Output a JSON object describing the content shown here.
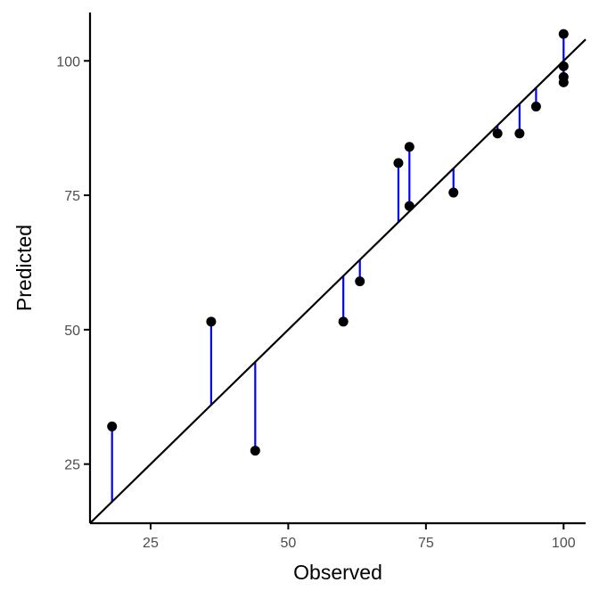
{
  "chart_data": {
    "type": "scatter",
    "xlabel": "Observed",
    "ylabel": "Predicted",
    "xlim": [
      14,
      104
    ],
    "ylim": [
      14,
      109
    ],
    "x_ticks": [
      25,
      50,
      75,
      100
    ],
    "y_ticks": [
      25,
      50,
      75,
      100
    ],
    "x_tick_labels": [
      "25",
      "50",
      "75",
      "100"
    ],
    "y_tick_labels": [
      "25",
      "50",
      "75",
      "100"
    ],
    "grid": false,
    "reference_line": {
      "slope": 1,
      "intercept": 0
    },
    "points": [
      {
        "x": 18,
        "y": 32
      },
      {
        "x": 36,
        "y": 51.5
      },
      {
        "x": 44,
        "y": 27.5
      },
      {
        "x": 60,
        "y": 51.5
      },
      {
        "x": 63,
        "y": 59
      },
      {
        "x": 70,
        "y": 81
      },
      {
        "x": 72,
        "y": 84
      },
      {
        "x": 72,
        "y": 73
      },
      {
        "x": 80,
        "y": 75.5
      },
      {
        "x": 88,
        "y": 86.5
      },
      {
        "x": 92,
        "y": 86.5
      },
      {
        "x": 95,
        "y": 91.5
      },
      {
        "x": 100,
        "y": 105
      },
      {
        "x": 100,
        "y": 99
      },
      {
        "x": 100,
        "y": 97
      },
      {
        "x": 100,
        "y": 96
      }
    ],
    "colors": {
      "points": "#000000",
      "residuals": "#0000ff",
      "line": "#000000",
      "axis": "#000000"
    }
  }
}
